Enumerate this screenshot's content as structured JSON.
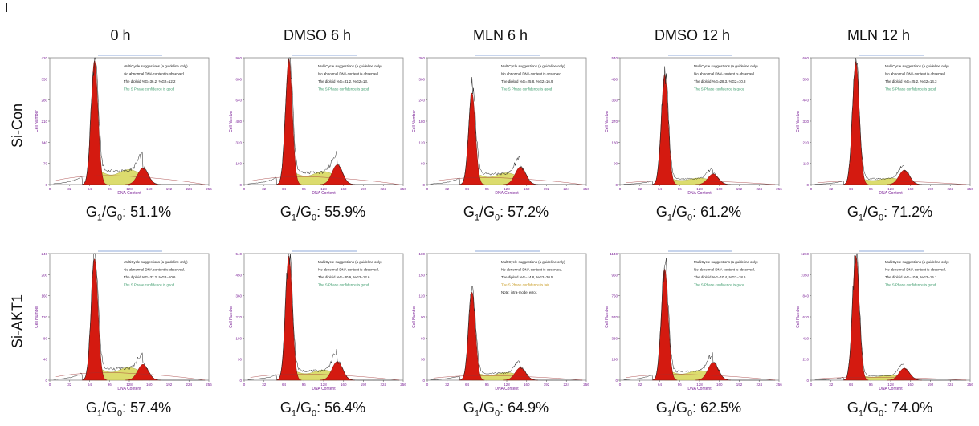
{
  "figure": {
    "panel_letter": "I",
    "columns": [
      "0 h",
      "DMSO 6 h",
      "MLN 6 h",
      "DMSO 12 h",
      "MLN 12 h"
    ],
    "rows": [
      "Si-Con",
      "Si-AKT1"
    ],
    "g1_prefix": "G1/G0: ",
    "colors": {
      "g1_peak": "#d41a10",
      "s_phase": "#dcdc6e",
      "g2_peak": "#d41a10",
      "fit": "#7a1a10",
      "ylabel": "#7a1f96"
    }
  },
  "chart_data": [
    {
      "type": "area",
      "row": "Si-Con",
      "column": "0 h",
      "header_label": "",
      "status_text": "",
      "g1_label": "51.1%",
      "g1_value": 51.1,
      "xlabel": "DNA Content",
      "ylabel": "Cell Number",
      "xlim": [
        0,
        256
      ],
      "ylim": [
        0,
        420
      ],
      "x_ticks": [
        "0",
        "32",
        "64",
        "96",
        "128",
        "160",
        "192",
        "224",
        "256"
      ],
      "y_ticks": [
        "0",
        "70",
        "140",
        "210",
        "280",
        "350",
        "420"
      ],
      "g1_peak_x": 72,
      "g1_peak_height": 410,
      "g2_peak_x": 150,
      "g2_peak_height": 55,
      "s_level": 45,
      "legend_lines": [
        "MultiCycle suggestions (a guideline only)",
        "No abnormal DNA content is observed.",
        "The diploid %G=36.2, %G2=12.2",
        "The S Phase confidence is good"
      ]
    },
    {
      "type": "area",
      "row": "Si-Con",
      "column": "DMSO 6 h",
      "header_label": "",
      "status_text": "",
      "g1_label": "55.9%",
      "g1_value": 55.9,
      "xlabel": "DNA Content",
      "ylabel": "Cell Number",
      "xlim": [
        0,
        256
      ],
      "ylim": [
        0,
        960
      ],
      "x_ticks": [
        "0",
        "32",
        "64",
        "96",
        "128",
        "160",
        "192",
        "224",
        "256"
      ],
      "y_ticks": [
        "0",
        "160",
        "320",
        "480",
        "640",
        "800",
        "960"
      ],
      "g1_peak_x": 72,
      "g1_peak_height": 950,
      "g2_peak_x": 150,
      "g2_peak_height": 150,
      "s_level": 90,
      "legend_lines": [
        "MultiCycle suggestions (a guideline only)",
        "No abnormal DNA content is observed.",
        "The diploid %G=31.2, %G2=13.",
        "The S Phase confidence is good"
      ]
    },
    {
      "type": "area",
      "row": "Si-Con",
      "column": "MLN 6 h",
      "header_label": "",
      "status_text": "",
      "g1_label": "57.2%",
      "g1_value": 57.2,
      "xlabel": "DNA Content",
      "ylabel": "Cell Number",
      "xlim": [
        0,
        256
      ],
      "ylim": [
        0,
        360
      ],
      "x_ticks": [
        "0",
        "32",
        "64",
        "96",
        "128",
        "160",
        "192",
        "224",
        "256"
      ],
      "y_ticks": [
        "0",
        "60",
        "120",
        "180",
        "240",
        "300",
        "360"
      ],
      "g1_peak_x": 72,
      "g1_peak_height": 260,
      "g2_peak_x": 150,
      "g2_peak_height": 50,
      "s_level": 30,
      "legend_lines": [
        "MultiCycle suggestions (a guideline only)",
        "No abnormal DNA content is observed.",
        "The diploid %G=25.8, %G2=16.9",
        "The S Phase confidence is good"
      ]
    },
    {
      "type": "area",
      "row": "Si-Con",
      "column": "DMSO 12 h",
      "header_label": "",
      "status_text": "",
      "g1_label": "61.2%",
      "g1_value": 61.2,
      "xlabel": "DNA Content",
      "ylabel": "Cell Number",
      "xlim": [
        0,
        256
      ],
      "ylim": [
        0,
        540
      ],
      "x_ticks": [
        "0",
        "32",
        "64",
        "96",
        "128",
        "160",
        "192",
        "224",
        "256"
      ],
      "y_ticks": [
        "0",
        "90",
        "180",
        "270",
        "360",
        "450",
        "540"
      ],
      "g1_peak_x": 72,
      "g1_peak_height": 470,
      "g2_peak_x": 150,
      "g2_peak_height": 45,
      "s_level": 25,
      "legend_lines": [
        "MultiCycle suggestions (a guideline only)",
        "No abnormal DNA content is observed.",
        "The diploid %G=28.3, %G2=10.8",
        "The S Phase confidence is good"
      ]
    },
    {
      "type": "area",
      "row": "Si-Con",
      "column": "MLN 12 h",
      "header_label": "",
      "status_text": "",
      "g1_label": "71.2%",
      "g1_value": 71.2,
      "xlabel": "DNA Content",
      "ylabel": "Cell Number",
      "xlim": [
        0,
        256
      ],
      "ylim": [
        0,
        660
      ],
      "x_ticks": [
        "0",
        "32",
        "64",
        "96",
        "128",
        "160",
        "192",
        "224",
        "256"
      ],
      "y_ticks": [
        "0",
        "110",
        "220",
        "330",
        "440",
        "550",
        "660"
      ],
      "g1_peak_x": 72,
      "g1_peak_height": 640,
      "g2_peak_x": 150,
      "g2_peak_height": 75,
      "s_level": 30,
      "legend_lines": [
        "MultiCycle suggestions (a guideline only)",
        "No abnormal DNA content is observed.",
        "The diploid %G=25.2, %G2=14.3",
        "The S Phase confidence is good"
      ]
    },
    {
      "type": "area",
      "row": "Si-AKT1",
      "column": "0 h",
      "header_label": "",
      "status_text": "",
      "g1_label": "57.4%",
      "g1_value": 57.4,
      "xlabel": "DNA Content",
      "ylabel": "Cell Number",
      "xlim": [
        0,
        256
      ],
      "ylim": [
        0,
        240
      ],
      "x_ticks": [
        "0",
        "32",
        "64",
        "96",
        "128",
        "160",
        "192",
        "224",
        "256"
      ],
      "y_ticks": [
        "0",
        "40",
        "80",
        "120",
        "160",
        "200",
        "240"
      ],
      "g1_peak_x": 72,
      "g1_peak_height": 230,
      "g2_peak_x": 150,
      "g2_peak_height": 30,
      "s_level": 22,
      "legend_lines": [
        "MultiCycle suggestions (a guideline only)",
        "No abnormal DNA content is observed.",
        "The diploid %G=32.2, %G2=10.6",
        "The S Phase confidence is good"
      ]
    },
    {
      "type": "area",
      "row": "Si-AKT1",
      "column": "DMSO 6 h",
      "header_label": "",
      "status_text": "",
      "g1_label": "56.4%",
      "g1_value": 56.4,
      "xlabel": "DNA Content",
      "ylabel": "Cell Number",
      "xlim": [
        0,
        256
      ],
      "ylim": [
        0,
        540
      ],
      "x_ticks": [
        "0",
        "32",
        "64",
        "96",
        "128",
        "160",
        "192",
        "224",
        "256"
      ],
      "y_ticks": [
        "0",
        "90",
        "180",
        "270",
        "360",
        "450",
        "540"
      ],
      "g1_peak_x": 72,
      "g1_peak_height": 530,
      "g2_peak_x": 150,
      "g2_peak_height": 80,
      "s_level": 40,
      "legend_lines": [
        "MultiCycle suggestions (a guideline only)",
        "No abnormal DNA content is observed.",
        "The diploid %G=30.9, %G2=12.6",
        "The S Phase confidence is good"
      ]
    },
    {
      "type": "area",
      "row": "Si-AKT1",
      "column": "MLN 6 h",
      "header_label": "",
      "status_text": "",
      "g1_label": "64.9%",
      "g1_value": 64.9,
      "xlabel": "DNA Content",
      "ylabel": "Cell Number",
      "xlim": [
        0,
        256
      ],
      "ylim": [
        0,
        180
      ],
      "x_ticks": [
        "0",
        "32",
        "64",
        "96",
        "128",
        "160",
        "192",
        "224",
        "256"
      ],
      "y_ticks": [
        "0",
        "30",
        "60",
        "90",
        "120",
        "150",
        "180"
      ],
      "g1_peak_x": 72,
      "g1_peak_height": 125,
      "g2_peak_x": 150,
      "g2_peak_height": 18,
      "s_level": 10,
      "legend_lines": [
        "MultiCycle suggestions (a guideline only)",
        "No abnormal DNA content is observed.",
        "The diploid %G=14.8, %G2=20.5",
        "The S Phase confidence is fair",
        "Note: intra-model error."
      ]
    },
    {
      "type": "area",
      "row": "Si-AKT1",
      "column": "DMSO 12 h",
      "header_label": "",
      "status_text": "",
      "g1_label": "62.5%",
      "g1_value": 62.5,
      "xlabel": "DNA Content",
      "ylabel": "Cell Number",
      "xlim": [
        0,
        256
      ],
      "ylim": [
        0,
        1140
      ],
      "x_ticks": [
        "0",
        "32",
        "64",
        "96",
        "128",
        "160",
        "192",
        "224",
        "256"
      ],
      "y_ticks": [
        "0",
        "190",
        "380",
        "570",
        "760",
        "950",
        "1140"
      ],
      "g1_peak_x": 72,
      "g1_peak_height": 1000,
      "g2_peak_x": 150,
      "g2_peak_height": 160,
      "s_level": 80,
      "legend_lines": [
        "MultiCycle suggestions (a guideline only)",
        "No abnormal DNA content is observed.",
        "The diploid %G=10.4, %G2=18.6",
        "The S Phase confidence is good"
      ]
    },
    {
      "type": "area",
      "row": "Si-AKT1",
      "column": "MLN 12 h",
      "header_label": "",
      "status_text": "",
      "g1_label": "74.0%",
      "g1_value": 74.0,
      "xlabel": "DNA Content",
      "ylabel": "Cell Number",
      "xlim": [
        0,
        256
      ],
      "ylim": [
        0,
        1260
      ],
      "x_ticks": [
        "0",
        "32",
        "64",
        "96",
        "128",
        "160",
        "192",
        "224",
        "256"
      ],
      "y_ticks": [
        "0",
        "210",
        "420",
        "630",
        "840",
        "1050",
        "1260"
      ],
      "g1_peak_x": 72,
      "g1_peak_height": 1240,
      "g2_peak_x": 150,
      "g2_peak_height": 120,
      "s_level": 45,
      "legend_lines": [
        "MultiCycle suggestions (a guideline only)",
        "No abnormal DNA content is observed.",
        "The diploid %G=10.9, %G2=15.1",
        "The S Phase confidence is good"
      ]
    }
  ]
}
